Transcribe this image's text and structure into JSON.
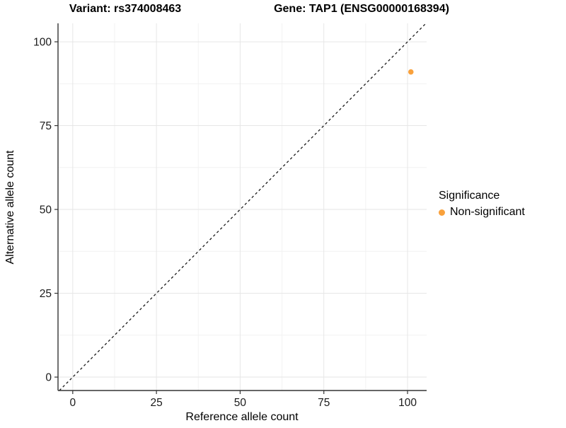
{
  "titles": {
    "left": "Variant: rs374008463",
    "right": "Gene: TAP1 (ENSG00000168394)"
  },
  "chart_data": {
    "type": "scatter",
    "title_left": "Variant: rs374008463",
    "title_right": "Gene: TAP1 (ENSG00000168394)",
    "xlabel": "Reference allele count",
    "ylabel": "Alternative allele count",
    "xlim": [
      -4.4,
      105.7
    ],
    "ylim": [
      -4.0,
      105.5
    ],
    "x_ticks": [
      0,
      25,
      50,
      75,
      100
    ],
    "y_ticks": [
      0,
      25,
      50,
      75,
      100
    ],
    "x_minor_ticks": [
      12.5,
      37.5,
      62.5,
      87.5
    ],
    "y_minor_ticks": [
      12.5,
      37.5,
      62.5,
      87.5
    ],
    "grid": true,
    "identity_line": {
      "style": "dashed",
      "slope": 1,
      "intercept": 0,
      "color": "#1a1a1a"
    },
    "series": [
      {
        "name": "Non-significant",
        "color": "#F9A13C",
        "points": [
          {
            "x": 101,
            "y": 91
          }
        ]
      }
    ],
    "legend": {
      "title": "Significance",
      "position": "right",
      "items": [
        {
          "label": "Non-significant",
          "color": "#F9A13C"
        }
      ]
    },
    "colors": {
      "axis_line": "#333333",
      "major_grid": "#E6E6E6",
      "minor_grid": "#F2F2F2",
      "tick_label": "#1a1a1a",
      "background": "#ffffff"
    }
  }
}
